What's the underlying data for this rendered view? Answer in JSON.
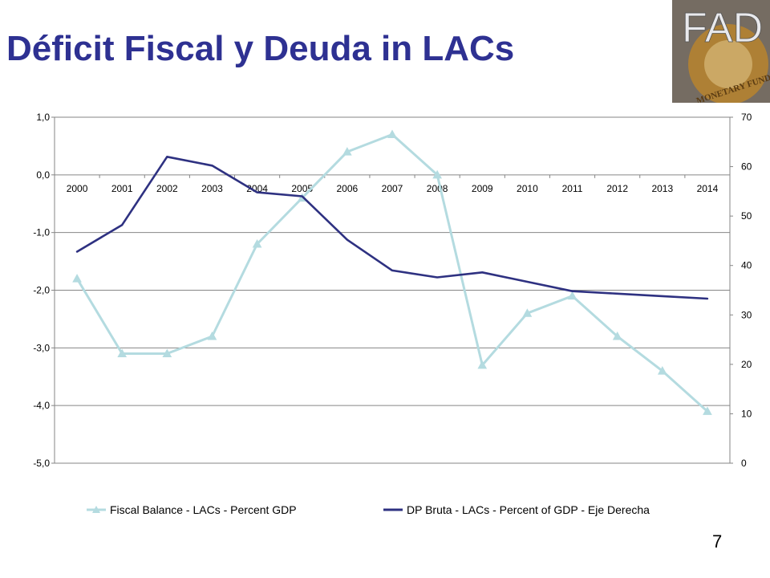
{
  "slide": {
    "title": "Déficit Fiscal y Deuda in LACs",
    "page_number": "7"
  },
  "logo": {
    "text": "FAD",
    "ring_text": "MONETARY FUND",
    "colors": {
      "bg": "#6b6a6e",
      "emblem": "#b8842e",
      "letters": "#e9e9ec"
    }
  },
  "chart_data": {
    "type": "line",
    "x": [
      "2000",
      "2001",
      "2002",
      "2003",
      "2004",
      "2005",
      "2006",
      "2007",
      "2008",
      "2009",
      "2010",
      "2011",
      "2012",
      "2013",
      "2014"
    ],
    "y_left_ticks": [
      "1,0",
      "0,0",
      "-1,0",
      "-2,0",
      "-3,0",
      "-4,0",
      "-5,0"
    ],
    "y_right_ticks": [
      "70",
      "60",
      "50",
      "40",
      "30",
      "20",
      "10",
      "0"
    ],
    "y_left_range": [
      -5,
      1
    ],
    "y_right_range": [
      0,
      70
    ],
    "grid": true,
    "legend_position": "bottom",
    "series": [
      {
        "name": "Fiscal Balance - LACs - Percent GDP",
        "axis": "left",
        "color": "#b4dbe0",
        "marker": "triangle",
        "values": [
          -1.8,
          -3.1,
          -3.1,
          -2.8,
          -1.2,
          -0.4,
          0.4,
          0.7,
          0.0,
          -3.3,
          -2.4,
          -2.1,
          -2.8,
          -3.4,
          -4.1
        ]
      },
      {
        "name": "DP Bruta - LACs - Percent of GDP - Eje Derecha",
        "axis": "right",
        "color": "#2e3181",
        "marker": "none",
        "values": [
          42.8,
          48.2,
          62.0,
          60.2,
          54.8,
          54.0,
          45.2,
          39.0,
          37.6,
          38.6,
          36.7,
          34.8,
          34.3,
          33.8,
          33.3
        ]
      }
    ]
  }
}
